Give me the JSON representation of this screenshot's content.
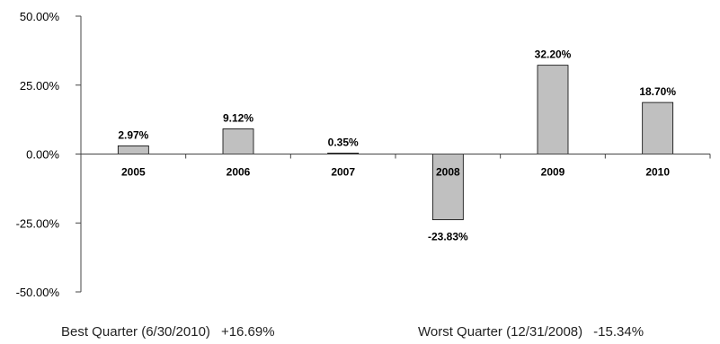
{
  "chart_data": {
    "type": "bar",
    "categories": [
      "2005",
      "2006",
      "2007",
      "2008",
      "2009",
      "2010"
    ],
    "values": [
      2.97,
      9.12,
      0.35,
      -23.83,
      32.2,
      18.7
    ],
    "value_labels": [
      "2.97%",
      "9.12%",
      "0.35%",
      "-23.83%",
      "32.20%",
      "18.70%"
    ],
    "ylim": [
      -50,
      50
    ],
    "y_ticks": [
      50,
      25,
      0,
      -25,
      -50
    ],
    "y_tick_labels": [
      "50.00%",
      "25.00%",
      "0.00%",
      "-25.00%",
      "-50.00%"
    ],
    "grid": false,
    "legend": "none",
    "bar_color": "#c0c0c0",
    "bar_stroke": "#000000"
  },
  "footer": {
    "best_label": "Best Quarter (6/30/2010)",
    "best_value": "+16.69%",
    "worst_label": "Worst Quarter (12/31/2008)",
    "worst_value": "-15.34%"
  }
}
